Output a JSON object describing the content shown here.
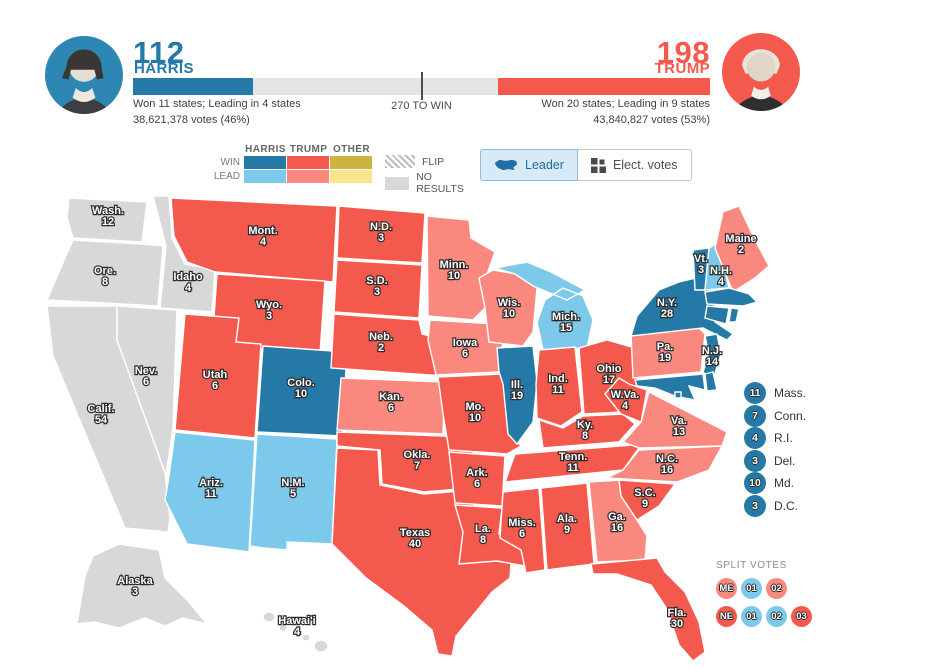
{
  "header": {
    "harris": {
      "electoral_votes": "112",
      "name": "HARRIS",
      "summary": "Won 11 states; Leading in 4 states",
      "votes": "38,621,378 votes (46%)"
    },
    "trump": {
      "electoral_votes": "198",
      "name": "TRUMP",
      "summary": "Won 20 states; Leading in 9 states",
      "votes": "43,840,827 votes (53%)"
    },
    "target": "270 TO WIN"
  },
  "legend": {
    "columns": [
      "HARRIS",
      "TRUMP",
      "OTHER"
    ],
    "row_win": "WIN",
    "row_lead": "LEAD",
    "flip": "FLIP",
    "no_results": "NO RESULTS"
  },
  "toggle": {
    "leader": "Leader",
    "electoral": "Elect. votes"
  },
  "colors": {
    "harris_win": "#2579A7",
    "harris_lead": "#7DC9EC",
    "trump_win": "#F4594E",
    "trump_lead": "#F9897F",
    "other_win": "#CDB43F",
    "other_lead": "#F8E48C",
    "none": "#D8D8D8"
  },
  "map": {
    "states": [
      {
        "id": "wash",
        "label": "Wash.",
        "votes": "12",
        "result": "none"
      },
      {
        "id": "ore",
        "label": "Ore.",
        "votes": "8",
        "result": "none"
      },
      {
        "id": "calif",
        "label": "Calif.",
        "votes": "54",
        "result": "none"
      },
      {
        "id": "nev",
        "label": "Nev.",
        "votes": "6",
        "result": "none"
      },
      {
        "id": "idaho",
        "label": "Idaho",
        "votes": "4",
        "result": "none"
      },
      {
        "id": "mont",
        "label": "Mont.",
        "votes": "4",
        "result": "trump_win"
      },
      {
        "id": "wyo",
        "label": "Wyo.",
        "votes": "3",
        "result": "trump_win"
      },
      {
        "id": "utah",
        "label": "Utah",
        "votes": "6",
        "result": "trump_win"
      },
      {
        "id": "colo",
        "label": "Colo.",
        "votes": "10",
        "result": "harris_win"
      },
      {
        "id": "ariz",
        "label": "Ariz.",
        "votes": "11",
        "result": "harris_lead"
      },
      {
        "id": "nm",
        "label": "N.M.",
        "votes": "5",
        "result": "harris_lead"
      },
      {
        "id": "nd",
        "label": "N.D.",
        "votes": "3",
        "result": "trump_win"
      },
      {
        "id": "sd",
        "label": "S.D.",
        "votes": "3",
        "result": "trump_win"
      },
      {
        "id": "neb",
        "label": "Neb.",
        "votes": "2",
        "result": "trump_win"
      },
      {
        "id": "kan",
        "label": "Kan.",
        "votes": "6",
        "result": "trump_lead"
      },
      {
        "id": "okla",
        "label": "Okla.",
        "votes": "7",
        "result": "trump_win"
      },
      {
        "id": "texas",
        "label": "Texas",
        "votes": "40",
        "result": "trump_win"
      },
      {
        "id": "minn",
        "label": "Minn.",
        "votes": "10",
        "result": "trump_lead"
      },
      {
        "id": "iowa",
        "label": "Iowa",
        "votes": "6",
        "result": "trump_lead"
      },
      {
        "id": "mo",
        "label": "Mo.",
        "votes": "10",
        "result": "trump_win"
      },
      {
        "id": "ark",
        "label": "Ark.",
        "votes": "6",
        "result": "trump_win"
      },
      {
        "id": "la",
        "label": "La.",
        "votes": "8",
        "result": "trump_win"
      },
      {
        "id": "wis",
        "label": "Wis.",
        "votes": "10",
        "result": "trump_lead"
      },
      {
        "id": "ill",
        "label": "Ill.",
        "votes": "19",
        "result": "harris_win"
      },
      {
        "id": "mich",
        "label": "Mich.",
        "votes": "15",
        "result": "harris_lead"
      },
      {
        "id": "ind",
        "label": "Ind.",
        "votes": "11",
        "result": "trump_win"
      },
      {
        "id": "ohio",
        "label": "Ohio",
        "votes": "17",
        "result": "trump_win"
      },
      {
        "id": "ky",
        "label": "Ky.",
        "votes": "8",
        "result": "trump_win"
      },
      {
        "id": "tenn",
        "label": "Tenn.",
        "votes": "11",
        "result": "trump_win"
      },
      {
        "id": "miss",
        "label": "Miss.",
        "votes": "6",
        "result": "trump_win"
      },
      {
        "id": "ala",
        "label": "Ala.",
        "votes": "9",
        "result": "trump_win"
      },
      {
        "id": "ga",
        "label": "Ga.",
        "votes": "16",
        "result": "trump_lead"
      },
      {
        "id": "fla",
        "label": "Fla.",
        "votes": "30",
        "result": "trump_win"
      },
      {
        "id": "sc",
        "label": "S.C.",
        "votes": "9",
        "result": "trump_win"
      },
      {
        "id": "nc",
        "label": "N.C.",
        "votes": "16",
        "result": "trump_lead"
      },
      {
        "id": "va",
        "label": "Va.",
        "votes": "13",
        "result": "trump_lead"
      },
      {
        "id": "wva",
        "label": "W.Va.",
        "votes": "4",
        "result": "trump_win"
      },
      {
        "id": "pa",
        "label": "Pa.",
        "votes": "19",
        "result": "trump_lead"
      },
      {
        "id": "ny",
        "label": "N.Y.",
        "votes": "28",
        "result": "harris_win"
      },
      {
        "id": "nj",
        "label": "N.J.",
        "votes": "14",
        "result": "harris_win"
      },
      {
        "id": "md",
        "label": "",
        "votes": "",
        "result": "harris_win"
      },
      {
        "id": "del",
        "label": "",
        "votes": "",
        "result": "harris_win"
      },
      {
        "id": "dc",
        "label": "",
        "votes": "",
        "result": "harris_win"
      },
      {
        "id": "vt",
        "label": "Vt.",
        "votes": "3",
        "result": "harris_win"
      },
      {
        "id": "nh",
        "label": "N.H.",
        "votes": "4",
        "result": "harris_lead"
      },
      {
        "id": "maine",
        "label": "Maine",
        "votes": "2",
        "result": "trump_lead"
      },
      {
        "id": "mass",
        "label": "",
        "votes": "",
        "result": "harris_win"
      },
      {
        "id": "conn",
        "label": "",
        "votes": "",
        "result": "harris_win"
      },
      {
        "id": "ri",
        "label": "",
        "votes": "",
        "result": "harris_win"
      },
      {
        "id": "alaska",
        "label": "Alaska",
        "votes": "3",
        "result": "none"
      },
      {
        "id": "hawaii",
        "label": "Hawai'i",
        "votes": "4",
        "result": "none"
      }
    ]
  },
  "small_states": [
    {
      "votes": "11",
      "label": "Mass.",
      "result": "harris_win"
    },
    {
      "votes": "7",
      "label": "Conn.",
      "result": "harris_win"
    },
    {
      "votes": "4",
      "label": "R.I.",
      "result": "harris_win"
    },
    {
      "votes": "3",
      "label": "Del.",
      "result": "harris_win"
    },
    {
      "votes": "10",
      "label": "Md.",
      "result": "harris_win"
    },
    {
      "votes": "3",
      "label": "D.C.",
      "result": "harris_win"
    }
  ],
  "split_votes": {
    "title": "SPLIT VOTES",
    "rows": [
      [
        {
          "text": "ME",
          "result": "trump_lead"
        },
        {
          "text": "01",
          "result": "harris_lead"
        },
        {
          "text": "02",
          "result": "trump_lead"
        }
      ],
      [
        {
          "text": "NE",
          "result": "trump_win"
        },
        {
          "text": "01",
          "result": "harris_lead"
        },
        {
          "text": "02",
          "result": "harris_lead"
        },
        {
          "text": "03",
          "result": "trump_win"
        }
      ]
    ]
  }
}
